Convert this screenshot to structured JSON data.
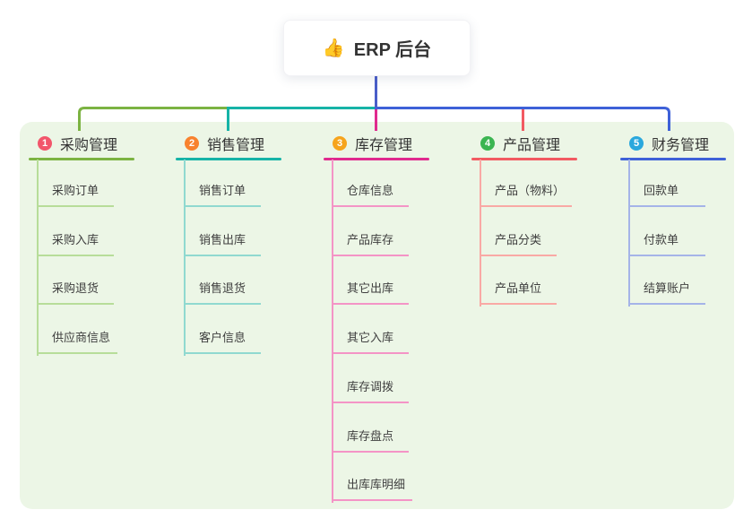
{
  "root": {
    "label": "ERP 后台",
    "icon": "thumbs-up"
  },
  "colors": {
    "panel_bg": "#ecf6e6",
    "root_connector": "#4a5ec9",
    "title_text": "#333333",
    "child_text": "#3f3f3f"
  },
  "branches": [
    {
      "badge": "1",
      "title": "采购管理",
      "badge_color": "#f2566b",
      "line_color": "#7cb342",
      "child_line_color": "#b7dd99",
      "children": [
        "采购订单",
        "采购入库",
        "采购退货",
        "供应商信息"
      ]
    },
    {
      "badge": "2",
      "title": "销售管理",
      "badge_color": "#f8822e",
      "line_color": "#16b3a7",
      "child_line_color": "#90d9d0",
      "children": [
        "销售订单",
        "销售出库",
        "销售退货",
        "客户信息"
      ]
    },
    {
      "badge": "3",
      "title": "库存管理",
      "badge_color": "#f6a41c",
      "line_color": "#e02a8e",
      "child_line_color": "#f494c6",
      "children": [
        "仓库信息",
        "产品库存",
        "其它出库",
        "其它入库",
        "库存调拨",
        "库存盘点",
        "出库库明细"
      ]
    },
    {
      "badge": "4",
      "title": "产品管理",
      "badge_color": "#3bb551",
      "line_color": "#f25a62",
      "child_line_color": "#f9a9a5",
      "children": [
        "产品（物料）",
        "产品分类",
        "产品单位"
      ]
    },
    {
      "badge": "5",
      "title": "财务管理",
      "badge_color": "#2aa8dd",
      "line_color": "#3e61d8",
      "child_line_color": "#a5b4e8",
      "children": [
        "回款单",
        "付款单",
        "结算账户"
      ]
    }
  ]
}
